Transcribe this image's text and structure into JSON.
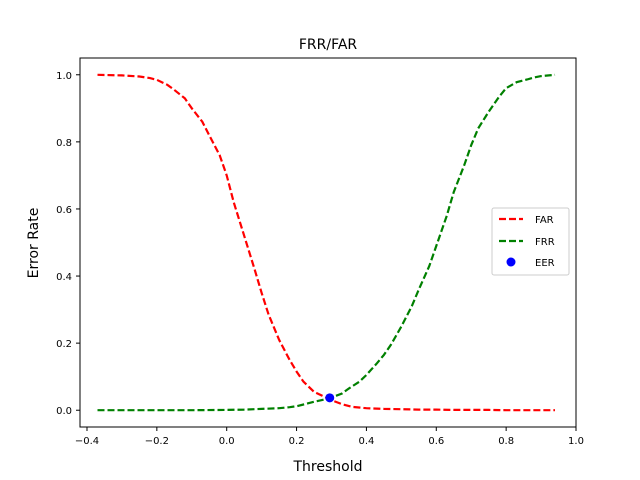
{
  "chart_data": {
    "type": "line",
    "title": "FRR/FAR",
    "xlabel": "Threshold",
    "ylabel": "Error Rate",
    "xlim": [
      -0.42,
      1.0
    ],
    "ylim": [
      -0.05,
      1.05
    ],
    "xticks": [
      -0.4,
      -0.2,
      0.0,
      0.2,
      0.4,
      0.6,
      0.8,
      1.0
    ],
    "xtick_labels": [
      "−0.4",
      "−0.2",
      "0.0",
      "0.2",
      "0.4",
      "0.6",
      "0.8",
      "1.0"
    ],
    "yticks": [
      0.0,
      0.2,
      0.4,
      0.6,
      0.8,
      1.0
    ],
    "ytick_labels": [
      "0.0",
      "0.2",
      "0.4",
      "0.6",
      "0.8",
      "1.0"
    ],
    "grid": false,
    "legend_position": "center-right",
    "series": [
      {
        "name": "FAR",
        "style": "dashed",
        "color": "#ff0000",
        "x": [
          -0.37,
          -0.3,
          -0.25,
          -0.22,
          -0.2,
          -0.17,
          -0.15,
          -0.12,
          -0.1,
          -0.07,
          -0.05,
          -0.02,
          0.0,
          0.02,
          0.05,
          0.08,
          0.1,
          0.12,
          0.15,
          0.18,
          0.2,
          0.22,
          0.25,
          0.28,
          0.3,
          0.33,
          0.36,
          0.4,
          0.45,
          0.5,
          0.55,
          0.6,
          0.65,
          0.7,
          0.75,
          0.8,
          0.85,
          0.9,
          0.94
        ],
        "y": [
          1.0,
          0.998,
          0.995,
          0.99,
          0.985,
          0.97,
          0.955,
          0.93,
          0.9,
          0.86,
          0.82,
          0.76,
          0.7,
          0.62,
          0.52,
          0.42,
          0.35,
          0.285,
          0.21,
          0.15,
          0.115,
          0.085,
          0.055,
          0.04,
          0.03,
          0.018,
          0.01,
          0.006,
          0.004,
          0.003,
          0.002,
          0.002,
          0.001,
          0.001,
          0.001,
          0.0,
          0.0,
          0.0,
          0.0
        ]
      },
      {
        "name": "FRR",
        "style": "dashed",
        "color": "#008000",
        "x": [
          -0.37,
          -0.3,
          -0.2,
          -0.1,
          0.0,
          0.05,
          0.1,
          0.15,
          0.18,
          0.2,
          0.22,
          0.25,
          0.28,
          0.3,
          0.33,
          0.35,
          0.38,
          0.4,
          0.43,
          0.45,
          0.47,
          0.5,
          0.53,
          0.55,
          0.58,
          0.6,
          0.63,
          0.65,
          0.68,
          0.7,
          0.72,
          0.75,
          0.78,
          0.8,
          0.83,
          0.86,
          0.88,
          0.9,
          0.94
        ],
        "y": [
          0.0,
          0.0,
          0.0,
          0.0,
          0.001,
          0.002,
          0.004,
          0.006,
          0.009,
          0.012,
          0.017,
          0.025,
          0.032,
          0.038,
          0.05,
          0.065,
          0.085,
          0.105,
          0.14,
          0.165,
          0.195,
          0.25,
          0.31,
          0.36,
          0.43,
          0.49,
          0.58,
          0.65,
          0.73,
          0.79,
          0.84,
          0.89,
          0.935,
          0.96,
          0.978,
          0.986,
          0.992,
          0.996,
          1.0
        ]
      }
    ],
    "points": [
      {
        "name": "EER",
        "x": 0.295,
        "y": 0.037,
        "color": "#0000ff"
      }
    ]
  }
}
